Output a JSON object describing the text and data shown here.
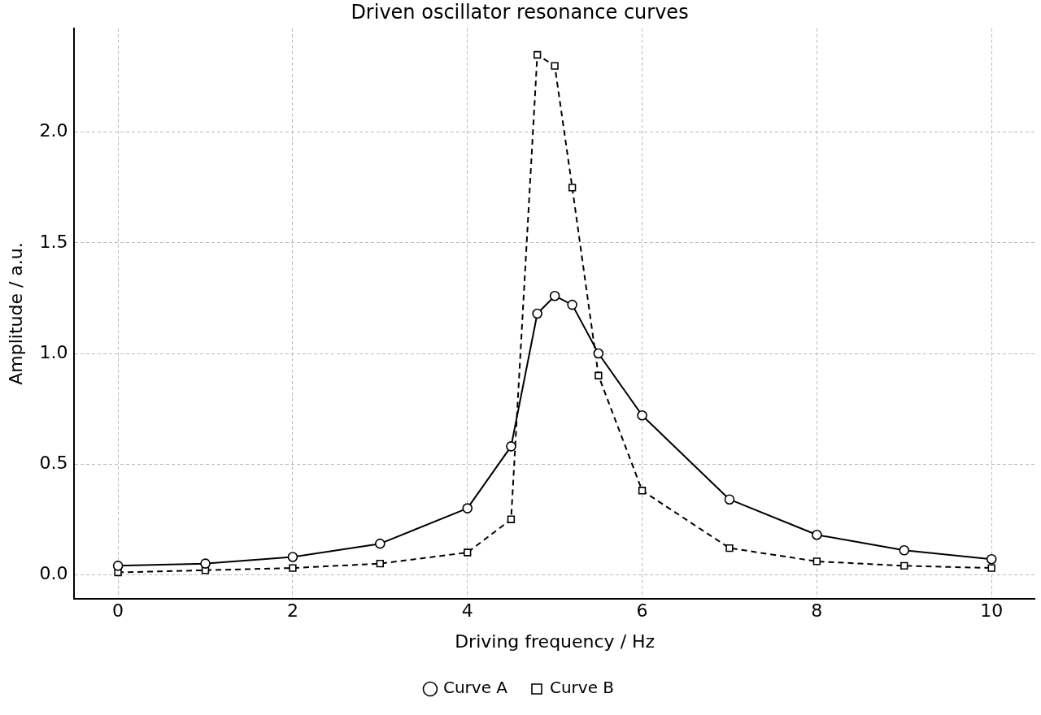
{
  "chart_data": {
    "type": "line",
    "title": "Driven oscillator resonance curves",
    "xlabel": "Driving frequency / Hz",
    "ylabel": "Amplitude / a.u.",
    "x": [
      0,
      1,
      2,
      3,
      4,
      4.5,
      4.8,
      5,
      5.2,
      5.5,
      6,
      7,
      8,
      9,
      10
    ],
    "series": [
      {
        "name": "Curve A",
        "color": "#000000",
        "marker": "circle",
        "line_style": "solid",
        "values": [
          0.04,
          0.05,
          0.08,
          0.14,
          0.3,
          0.58,
          1.18,
          1.26,
          1.22,
          1.0,
          0.72,
          0.34,
          0.18,
          0.11,
          0.07
        ]
      },
      {
        "name": "Curve B",
        "color": "#000000",
        "marker": "square",
        "line_style": "dashed",
        "values": [
          0.01,
          0.02,
          0.03,
          0.05,
          0.1,
          0.25,
          2.35,
          2.3,
          1.75,
          0.9,
          0.38,
          0.12,
          0.06,
          0.04,
          0.03
        ]
      }
    ],
    "xlim": [
      -0.5,
      10.5
    ],
    "ylim": [
      -0.11,
      2.47
    ],
    "xticks": [
      0,
      2,
      4,
      6,
      8,
      10
    ],
    "yticks": [
      {
        "value": 0,
        "label": "0.0"
      },
      {
        "value": 0.5,
        "label": "0.5"
      },
      {
        "value": 1,
        "label": "1.0"
      },
      {
        "value": 1.5,
        "label": "1.5"
      },
      {
        "value": 2,
        "label": "2.0"
      }
    ],
    "grid": true,
    "legend": "bottom"
  }
}
